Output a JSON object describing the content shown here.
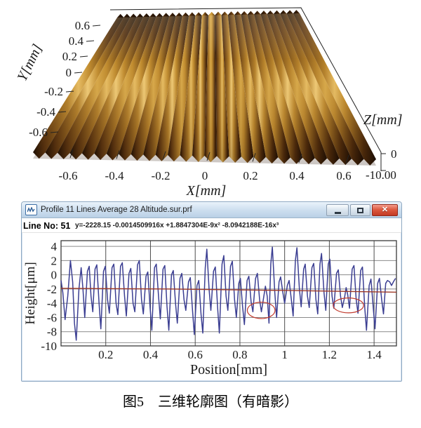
{
  "figure_caption": "图5　三维轮廓图（有暗影）",
  "profile_window": {
    "title": "Profile 11 Lines Average 28 Altitude.sur.prf",
    "line_no": "Line No: 51",
    "equation": "y=-2228.15 -0.0014509916x +1.8847304E-9x² -8.0942188E-16x³",
    "titlebar_icon": "waveform-document-icon",
    "buttons": [
      "minimize",
      "maximize",
      "close"
    ],
    "close_glyph": "✕"
  },
  "colors": {
    "waveform": "#3b3e92",
    "fit_line": "#9e3a28",
    "annotation": "#c23b2e",
    "grid_h": "#8a8a8a",
    "grid_v": "#4d4d4d",
    "frame": "#3a3a3a",
    "axis_text": "#1a1a1a",
    "surface_dark": "#1d0e02",
    "surface_shadow": "#5a3410",
    "surface_mid": "#b5812a",
    "surface_light": "#e7bc60",
    "box_line": "#222222"
  },
  "chart_data": [
    {
      "type": "heatmap",
      "subtype": "3d-ridged-surface",
      "title": "",
      "xlabel": "X[mm]",
      "ylabel": "Y[mm]",
      "zlabel": "Z[mm]",
      "x_ticks": [
        "-0.6",
        "-0.4",
        "-0.2",
        "0",
        "0.2",
        "0.4",
        "0.6"
      ],
      "y_ticks": [
        "0.6",
        "0.4",
        "0.2",
        "0",
        "-0.2",
        "-0.4",
        "-0.6"
      ],
      "z_ticks": [
        "0",
        "-10.00"
      ],
      "x_range": [
        -0.7,
        0.7
      ],
      "y_range": [
        -0.7,
        0.7
      ],
      "ridge_count": 28
    },
    {
      "type": "line",
      "title": "",
      "xlabel": "Position[mm]",
      "ylabel": "Height[μm]",
      "xlim": [
        0,
        1.5
      ],
      "ylim": [
        -10,
        4.8
      ],
      "grid": true,
      "x_ticks": [
        0.2,
        0.4,
        0.6,
        0.8,
        1,
        1.2,
        1.4
      ],
      "x_tick_labels": [
        "0.2",
        "0.4",
        "0.6",
        "0.8",
        "1",
        "1.2",
        "1.4"
      ],
      "y_ticks": [
        4,
        2,
        0,
        -2,
        -4,
        -6,
        -8,
        -10
      ],
      "y_tick_labels": [
        "4",
        "2",
        "0",
        "-2",
        "-4",
        "-6",
        "-8",
        "-10"
      ],
      "series": [
        {
          "name": "profile-line-51",
          "color": "#3b3e92",
          "points": [
            [
              0.0,
              -0.8
            ],
            [
              0.008,
              -2.5
            ],
            [
              0.018,
              -6.3
            ],
            [
              0.03,
              -3.0
            ],
            [
              0.042,
              2.0
            ],
            [
              0.052,
              -1.0
            ],
            [
              0.06,
              -6.8
            ],
            [
              0.068,
              -9.2
            ],
            [
              0.08,
              -2.0
            ],
            [
              0.09,
              1.0
            ],
            [
              0.098,
              -2.0
            ],
            [
              0.106,
              -6.0
            ],
            [
              0.118,
              0.5
            ],
            [
              0.126,
              1.2
            ],
            [
              0.134,
              -3.0
            ],
            [
              0.142,
              -5.2
            ],
            [
              0.152,
              0.8
            ],
            [
              0.16,
              1.4
            ],
            [
              0.17,
              -4.0
            ],
            [
              0.178,
              -7.6
            ],
            [
              0.19,
              0.5
            ],
            [
              0.198,
              1.2
            ],
            [
              0.208,
              -3.5
            ],
            [
              0.216,
              -5.4
            ],
            [
              0.228,
              1.0
            ],
            [
              0.236,
              1.5
            ],
            [
              0.246,
              -4.0
            ],
            [
              0.254,
              -5.6
            ],
            [
              0.266,
              1.2
            ],
            [
              0.274,
              1.7
            ],
            [
              0.284,
              -3.0
            ],
            [
              0.292,
              -5.8
            ],
            [
              0.304,
              0.2
            ],
            [
              0.312,
              0.9
            ],
            [
              0.322,
              -4.0
            ],
            [
              0.33,
              -5.2
            ],
            [
              0.342,
              1.4
            ],
            [
              0.35,
              2.0
            ],
            [
              0.36,
              -3.5
            ],
            [
              0.368,
              -5.5
            ],
            [
              0.38,
              -0.2
            ],
            [
              0.388,
              0.4
            ],
            [
              0.398,
              -4.5
            ],
            [
              0.406,
              -7.8
            ],
            [
              0.418,
              1.0
            ],
            [
              0.426,
              1.5
            ],
            [
              0.436,
              -3.0
            ],
            [
              0.444,
              -6.2
            ],
            [
              0.456,
              0.8
            ],
            [
              0.464,
              1.3
            ],
            [
              0.474,
              -4.5
            ],
            [
              0.482,
              -7.8
            ],
            [
              0.494,
              0.0
            ],
            [
              0.502,
              0.6
            ],
            [
              0.512,
              -4.0
            ],
            [
              0.52,
              -6.8
            ],
            [
              0.532,
              -0.5
            ],
            [
              0.54,
              0.2
            ],
            [
              0.55,
              -3.5
            ],
            [
              0.558,
              -5.0
            ],
            [
              0.57,
              -1.0
            ],
            [
              0.578,
              -0.4
            ],
            [
              0.588,
              -5.0
            ],
            [
              0.596,
              -8.4
            ],
            [
              0.608,
              -1.5
            ],
            [
              0.616,
              -0.8
            ],
            [
              0.626,
              -5.5
            ],
            [
              0.634,
              -8.2
            ],
            [
              0.645,
              1.0
            ],
            [
              0.652,
              3.6
            ],
            [
              0.662,
              -2.0
            ],
            [
              0.67,
              -5.0
            ],
            [
              0.682,
              0.5
            ],
            [
              0.69,
              1.1
            ],
            [
              0.7,
              -4.5
            ],
            [
              0.708,
              -8.2
            ],
            [
              0.72,
              1.5
            ],
            [
              0.728,
              2.7
            ],
            [
              0.738,
              -3.0
            ],
            [
              0.746,
              -5.0
            ],
            [
              0.758,
              1.2
            ],
            [
              0.766,
              1.9
            ],
            [
              0.776,
              -3.5
            ],
            [
              0.784,
              -6.0
            ],
            [
              0.795,
              -1.2
            ],
            [
              0.802,
              -0.5
            ],
            [
              0.812,
              -4.5
            ],
            [
              0.82,
              -7.0
            ],
            [
              0.832,
              -0.8
            ],
            [
              0.84,
              -0.2
            ],
            [
              0.85,
              -3.8
            ],
            [
              0.858,
              -5.2
            ],
            [
              0.87,
              -0.5
            ],
            [
              0.878,
              0.2
            ],
            [
              0.888,
              -3.5
            ],
            [
              0.896,
              -5.2
            ],
            [
              0.906,
              -3.2
            ],
            [
              0.914,
              -1.6
            ],
            [
              0.922,
              -3.0
            ],
            [
              0.93,
              -6.8
            ],
            [
              0.938,
              1.5
            ],
            [
              0.945,
              3.9
            ],
            [
              0.956,
              -2.5
            ],
            [
              0.964,
              -6.0
            ],
            [
              0.975,
              -1.0
            ],
            [
              0.982,
              -0.3
            ],
            [
              0.992,
              -2.5
            ],
            [
              1.0,
              -4.0
            ],
            [
              1.012,
              -1.5
            ],
            [
              1.02,
              -0.8
            ],
            [
              1.03,
              -3.5
            ],
            [
              1.038,
              -5.8
            ],
            [
              1.048,
              2.0
            ],
            [
              1.055,
              3.8
            ],
            [
              1.066,
              -2.0
            ],
            [
              1.074,
              -4.5
            ],
            [
              1.085,
              0.8
            ],
            [
              1.092,
              1.5
            ],
            [
              1.102,
              -3.0
            ],
            [
              1.11,
              -4.6
            ],
            [
              1.122,
              1.0
            ],
            [
              1.13,
              1.6
            ],
            [
              1.14,
              -3.5
            ],
            [
              1.148,
              -5.5
            ],
            [
              1.158,
              1.5
            ],
            [
              1.165,
              3.0
            ],
            [
              1.176,
              -2.5
            ],
            [
              1.184,
              -5.0
            ],
            [
              1.195,
              1.5
            ],
            [
              1.202,
              2.2
            ],
            [
              1.212,
              -3.0
            ],
            [
              1.22,
              -4.7
            ],
            [
              1.232,
              0.2
            ],
            [
              1.24,
              0.7
            ],
            [
              1.25,
              -3.0
            ],
            [
              1.258,
              -4.6
            ],
            [
              1.268,
              -3.2
            ],
            [
              1.275,
              -1.8
            ],
            [
              1.282,
              -2.8
            ],
            [
              1.29,
              -4.7
            ],
            [
              1.302,
              0.8
            ],
            [
              1.31,
              1.3
            ],
            [
              1.32,
              -3.5
            ],
            [
              1.328,
              -5.4
            ],
            [
              1.34,
              0.6
            ],
            [
              1.348,
              1.1
            ],
            [
              1.358,
              -4.5
            ],
            [
              1.366,
              -7.8
            ],
            [
              1.378,
              -1.5
            ],
            [
              1.386,
              -0.6
            ],
            [
              1.396,
              -4.5
            ],
            [
              1.404,
              -7.6
            ],
            [
              1.416,
              -1.2
            ],
            [
              1.424,
              -0.5
            ],
            [
              1.434,
              -3.5
            ],
            [
              1.442,
              -5.5
            ],
            [
              1.452,
              -1.2
            ],
            [
              1.46,
              -0.8
            ],
            [
              1.47,
              -1.0
            ],
            [
              1.478,
              -1.5
            ],
            [
              1.488,
              -0.9
            ],
            [
              1.496,
              -0.5
            ]
          ]
        },
        {
          "name": "polynomial-fit",
          "color": "#9e3a28",
          "points": [
            [
              0,
              -1.9
            ],
            [
              0.5,
              -2.0
            ],
            [
              1.0,
              -2.2
            ],
            [
              1.5,
              -2.45
            ]
          ]
        }
      ],
      "annotations": [
        {
          "shape": "ellipse",
          "cx": 0.895,
          "cy": -5.0,
          "rx": 0.062,
          "ry": 1.15
        },
        {
          "shape": "ellipse",
          "cx": 1.285,
          "cy": -4.3,
          "rx": 0.068,
          "ry": 1.05
        }
      ]
    }
  ]
}
